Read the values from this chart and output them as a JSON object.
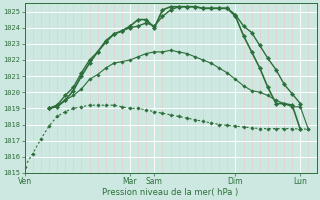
{
  "xlabel": "Pression niveau de la mer( hPa )",
  "background_color": "#cce8e0",
  "grid_color_major": "#ffffff",
  "grid_color_minor": "#e8c8c8",
  "line_color": "#2d6e3a",
  "ylim": [
    1015,
    1025.5
  ],
  "yticks": [
    1015,
    1016,
    1017,
    1018,
    1019,
    1020,
    1021,
    1022,
    1023,
    1024,
    1025
  ],
  "xlim": [
    0,
    36
  ],
  "day_labels": [
    "Ven",
    "Mar",
    "Sam",
    "Dim",
    "Lun"
  ],
  "day_positions": [
    0,
    13,
    16,
    26,
    34
  ],
  "series": [
    {
      "x": [
        0,
        1,
        2,
        3,
        4,
        5,
        6,
        7,
        8,
        9,
        10,
        11,
        12,
        13,
        14,
        15,
        16,
        17,
        18,
        19,
        20,
        21,
        22,
        23,
        24,
        25,
        26,
        27,
        28,
        29,
        30,
        31,
        32,
        33,
        34,
        35
      ],
      "y": [
        1015.4,
        1016.2,
        1017.1,
        1017.9,
        1018.5,
        1018.8,
        1019.0,
        1019.1,
        1019.2,
        1019.2,
        1019.2,
        1019.2,
        1019.1,
        1019.0,
        1019.0,
        1018.9,
        1018.8,
        1018.7,
        1018.6,
        1018.5,
        1018.4,
        1018.3,
        1018.2,
        1018.1,
        1018.0,
        1017.95,
        1017.9,
        1017.85,
        1017.8,
        1017.75,
        1017.75,
        1017.75,
        1017.75,
        1017.75,
        1017.72,
        1017.72
      ],
      "style": "dotted"
    },
    {
      "x": [
        3,
        4,
        5,
        6,
        7,
        8,
        9,
        10,
        11,
        12,
        13,
        14,
        15,
        16,
        17,
        18,
        19,
        20,
        21,
        22,
        23,
        24,
        25,
        26,
        27,
        28,
        29,
        30,
        31,
        32,
        33,
        34,
        35
      ],
      "y": [
        1019.0,
        1019.2,
        1019.5,
        1019.8,
        1020.2,
        1020.8,
        1021.1,
        1021.5,
        1021.8,
        1021.9,
        1022.0,
        1022.2,
        1022.4,
        1022.5,
        1022.5,
        1022.6,
        1022.5,
        1022.4,
        1022.2,
        1022.0,
        1021.8,
        1021.5,
        1021.2,
        1020.8,
        1020.4,
        1020.1,
        1020.0,
        1019.8,
        1019.5,
        1019.3,
        1019.1,
        1019.1,
        1017.7
      ],
      "style": "solid_light"
    },
    {
      "x": [
        3,
        4,
        5,
        6,
        7,
        8,
        9,
        10,
        11,
        12,
        13,
        14,
        15,
        16,
        17,
        18,
        19,
        20,
        21,
        22,
        23,
        24,
        25,
        26,
        27,
        28,
        29,
        30,
        31,
        32,
        33,
        34
      ],
      "y": [
        1019.0,
        1019.2,
        1019.8,
        1020.3,
        1021.2,
        1022.0,
        1022.5,
        1023.2,
        1023.6,
        1023.8,
        1024.0,
        1024.1,
        1024.3,
        1024.1,
        1024.7,
        1025.1,
        1025.3,
        1025.3,
        1025.3,
        1025.2,
        1025.2,
        1025.2,
        1025.2,
        1024.8,
        1024.1,
        1023.7,
        1022.9,
        1022.1,
        1021.4,
        1020.5,
        1019.9,
        1019.3
      ],
      "style": "solid_medium"
    },
    {
      "x": [
        3,
        4,
        5,
        6,
        7,
        8,
        9,
        10,
        11,
        12,
        13,
        14,
        15,
        16,
        17,
        18,
        19,
        20,
        21,
        22,
        23,
        24,
        25,
        26,
        27,
        28,
        29,
        30,
        31,
        32,
        33,
        34
      ],
      "y": [
        1019.0,
        1019.1,
        1019.5,
        1020.1,
        1021.0,
        1021.8,
        1022.5,
        1023.1,
        1023.6,
        1023.8,
        1024.1,
        1024.5,
        1024.5,
        1024.0,
        1025.1,
        1025.3,
        1025.3,
        1025.3,
        1025.3,
        1025.2,
        1025.2,
        1025.2,
        1025.2,
        1024.7,
        1023.5,
        1022.5,
        1021.5,
        1020.3,
        1019.3,
        1019.3,
        1019.2,
        1017.7
      ],
      "style": "solid_dark"
    }
  ]
}
